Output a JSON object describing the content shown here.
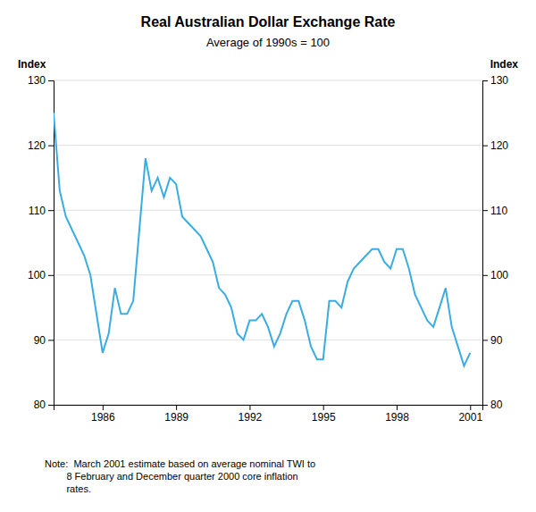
{
  "chart_data": {
    "type": "line",
    "title": "Real Australian Dollar Exchange Rate",
    "subtitle": "Average of 1990s = 100",
    "ylabel": "Index",
    "y2label": "Index",
    "note": "Note:  March 2001 estimate based on average nominal TWI to\n        8 February and December quarter 2000 core inflation\n        rates.",
    "color": "#3aace2",
    "grid": true,
    "xlim": [
      1984.0,
      2001.5
    ],
    "xticks": [
      1986,
      1989,
      1992,
      1995,
      1998,
      2001
    ],
    "ylim": [
      80,
      130
    ],
    "yticks": [
      80,
      90,
      100,
      110,
      120,
      130
    ],
    "y2lim": [
      80,
      130
    ],
    "y2ticks": [
      80,
      90,
      100,
      110,
      120,
      130
    ],
    "x": [
      1984.0,
      1984.25,
      1984.5,
      1984.75,
      1985.0,
      1985.25,
      1985.5,
      1985.75,
      1986.0,
      1986.25,
      1986.5,
      1986.75,
      1987.0,
      1987.25,
      1987.5,
      1987.75,
      1988.0,
      1988.25,
      1988.5,
      1988.75,
      1989.0,
      1989.25,
      1989.5,
      1989.75,
      1990.0,
      1990.25,
      1990.5,
      1990.75,
      1991.0,
      1991.25,
      1991.5,
      1991.75,
      1992.0,
      1992.25,
      1992.5,
      1992.75,
      1993.0,
      1993.25,
      1993.5,
      1993.75,
      1994.0,
      1994.25,
      1994.5,
      1994.75,
      1995.0,
      1995.25,
      1995.5,
      1995.75,
      1996.0,
      1996.25,
      1996.5,
      1996.75,
      1997.0,
      1997.25,
      1997.5,
      1997.75,
      1998.0,
      1998.25,
      1998.5,
      1998.75,
      1999.0,
      1999.25,
      1999.5,
      1999.75,
      2000.0,
      2000.25,
      2000.5,
      2000.75,
      2001.0
    ],
    "y": [
      125,
      113,
      109,
      107,
      105,
      103,
      100,
      94,
      88,
      91,
      98,
      94,
      94,
      96,
      107,
      118,
      113,
      115,
      112,
      115,
      114,
      109,
      108,
      107,
      106,
      104,
      102,
      98,
      97,
      95,
      91,
      90,
      93,
      93,
      94,
      92,
      89,
      91,
      94,
      96,
      96,
      93,
      89,
      87,
      87,
      96,
      96,
      95,
      99,
      101,
      102,
      103,
      104,
      104,
      102,
      101,
      104,
      104,
      101,
      97,
      95,
      93,
      92,
      95,
      98,
      92,
      89,
      86,
      88
    ]
  }
}
